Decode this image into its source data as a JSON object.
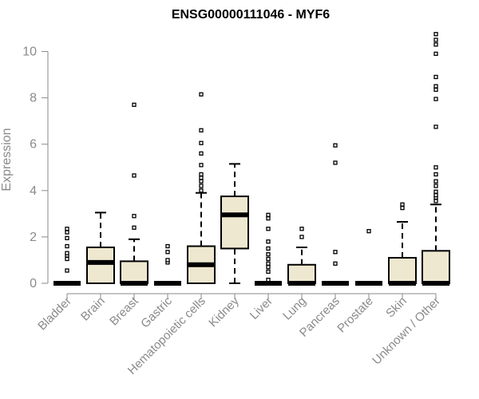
{
  "chart_data": {
    "type": "box",
    "title": "ENSG00000111046 - MYF6",
    "ylabel": "Expression",
    "xlabel": "",
    "ylim": [
      0,
      10.8
    ],
    "yticks": [
      0,
      2,
      4,
      6,
      8,
      10
    ],
    "box_fill": "#efe8d0",
    "categories": [
      "Bladder",
      "Brain",
      "Breast",
      "Gastric",
      "Hematopoietic cells",
      "Kidney",
      "Liver",
      "Lung",
      "Pancreas",
      "Prostate",
      "Skin",
      "Unknown / Other"
    ],
    "boxes": [
      {
        "category": "Bladder",
        "q1": 0,
        "median": 0,
        "q3": 0,
        "whisker_low": 0,
        "whisker_high": 0,
        "outliers": [
          0.55,
          1.05,
          1.2,
          1.3,
          1.6,
          1.95,
          2.2,
          2.35
        ]
      },
      {
        "category": "Brain",
        "q1": 0,
        "median": 0.9,
        "q3": 1.55,
        "whisker_low": 0,
        "whisker_high": 3.05,
        "outliers": []
      },
      {
        "category": "Breast",
        "q1": 0,
        "median": 0,
        "q3": 0.95,
        "whisker_low": 0,
        "whisker_high": 1.9,
        "outliers": [
          2.4,
          2.9,
          4.65,
          7.7
        ]
      },
      {
        "category": "Gastric",
        "q1": 0,
        "median": 0,
        "q3": 0,
        "whisker_low": 0,
        "whisker_high": 0,
        "outliers": [
          0.9,
          1.0,
          1.35,
          1.6
        ]
      },
      {
        "category": "Hematopoietic cells",
        "q1": 0,
        "median": 0.8,
        "q3": 1.6,
        "whisker_low": 0,
        "whisker_high": 3.9,
        "outliers": [
          4.0,
          4.2,
          4.4,
          4.55,
          4.7,
          5.1,
          5.6,
          6.05,
          6.6,
          8.15
        ]
      },
      {
        "category": "Kidney",
        "q1": 1.5,
        "median": 2.95,
        "q3": 3.75,
        "whisker_low": 0,
        "whisker_high": 5.15,
        "outliers": []
      },
      {
        "category": "Liver",
        "q1": 0,
        "median": 0,
        "q3": 0,
        "whisker_low": 0,
        "whisker_high": 0,
        "outliers": [
          0.15,
          0.5,
          0.7,
          0.85,
          1.05,
          1.25,
          1.5,
          1.8,
          2.35,
          2.8,
          2.95
        ]
      },
      {
        "category": "Lung",
        "q1": 0,
        "median": 0,
        "q3": 0.8,
        "whisker_low": 0,
        "whisker_high": 1.55,
        "outliers": [
          2.0,
          2.35
        ]
      },
      {
        "category": "Pancreas",
        "q1": 0,
        "median": 0,
        "q3": 0,
        "whisker_low": 0,
        "whisker_high": 0,
        "outliers": [
          0.85,
          1.35,
          5.2,
          5.95
        ]
      },
      {
        "category": "Prostate",
        "q1": 0,
        "median": 0,
        "q3": 0,
        "whisker_low": 0,
        "whisker_high": 0,
        "outliers": [
          2.25
        ]
      },
      {
        "category": "Skin",
        "q1": 0,
        "median": 0,
        "q3": 1.1,
        "whisker_low": 0,
        "whisker_high": 2.65,
        "outliers": [
          3.25,
          3.4
        ]
      },
      {
        "category": "Unknown / Other",
        "q1": 0,
        "median": 0,
        "q3": 1.4,
        "whisker_low": 0,
        "whisker_high": 3.4,
        "outliers": [
          3.55,
          3.7,
          3.8,
          3.95,
          4.2,
          4.4,
          4.7,
          5.0,
          6.75,
          7.95,
          8.35,
          8.5,
          8.9,
          9.9,
          10.3,
          10.5,
          10.75
        ]
      }
    ]
  }
}
